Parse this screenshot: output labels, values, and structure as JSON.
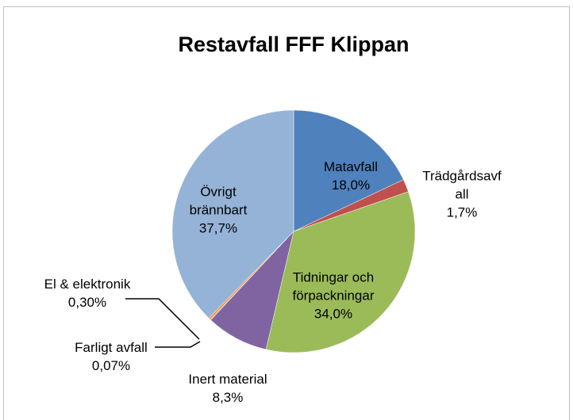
{
  "chart_data": {
    "type": "pie",
    "title": "Restavfall FFF Klippan",
    "categories": [
      "Matavfall",
      "Trädgårdsavfall",
      "Tidningar och förpackningar",
      "Inert material",
      "Farligt avfall",
      "El & elektronik",
      "Övrigt brännbart"
    ],
    "values": [
      18.0,
      1.7,
      34.0,
      8.3,
      0.07,
      0.3,
      37.7
    ],
    "value_labels": [
      "18,0%",
      "1,7%",
      "34,0%",
      "8,3%",
      "0,07%",
      "0,30%",
      "37,7%"
    ],
    "colors": [
      "#4f81bd",
      "#c0504d",
      "#9bbb59",
      "#8064a2",
      "#4bacc6",
      "#f79646",
      "#95b3d7"
    ]
  }
}
